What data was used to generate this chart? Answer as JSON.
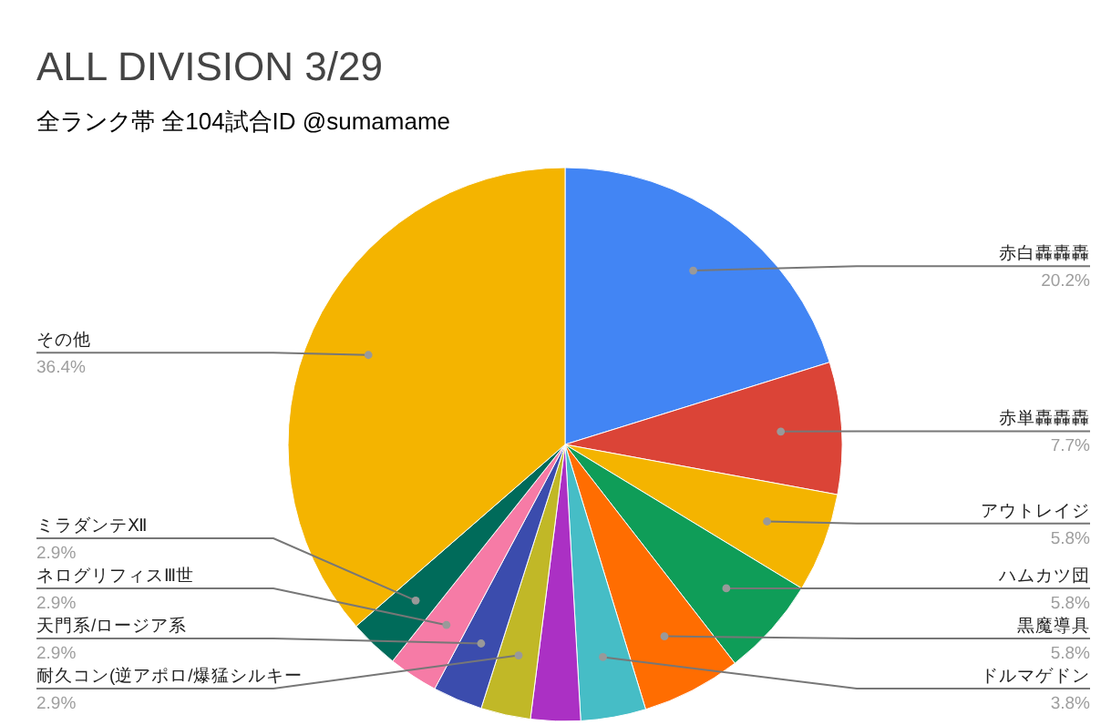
{
  "chart_data": {
    "type": "pie",
    "title": "ALL DIVISION 3/29",
    "subtitle": "全ランク帯 全104試合ID @sumamame",
    "categories": [
      "赤白轟轟轟",
      "赤単轟轟轟",
      "アウトレイジ",
      "ハムカツ団",
      "黒魔導具",
      "ドルマゲドン",
      null,
      "耐久コン(逆アポロ/爆猛シルキー",
      "天門系/ロージア系",
      "ネログリフィスⅢ世",
      "ミラダンテⅫ",
      "その他"
    ],
    "values": [
      20.2,
      7.7,
      5.8,
      5.8,
      5.8,
      3.8,
      2.9,
      2.9,
      2.9,
      2.9,
      2.9,
      36.4
    ],
    "value_labels": [
      "20.2%",
      "7.7%",
      "5.8%",
      "5.8%",
      "5.8%",
      "3.8%",
      null,
      "2.9%",
      "2.9%",
      "2.9%",
      "2.9%",
      "36.4%"
    ],
    "colors": [
      "#4285f4",
      "#db4437",
      "#f4b400",
      "#0f9d58",
      "#ff6d01",
      "#46bdc6",
      "#ab30c4",
      "#c1b827",
      "#3b4cad",
      "#f67ba6",
      "#006b5a",
      "#f4b400"
    ]
  }
}
